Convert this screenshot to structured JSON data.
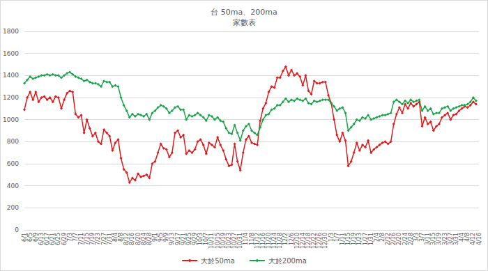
{
  "chart_data": {
    "type": "line",
    "title": "台 50ma、200ma",
    "subtitle": "家數表",
    "categories": [
      "6/1",
      null,
      "6/5",
      null,
      "6/9",
      null,
      "6/13",
      null,
      "6/17",
      null,
      "6/21",
      null,
      "6/25",
      null,
      "6/29",
      null,
      "7/3",
      null,
      "7/7",
      null,
      "7/11",
      null,
      "7/15",
      null,
      "7/19",
      null,
      "7/23",
      null,
      "7/27",
      null,
      "7/31",
      null,
      "8/4",
      null,
      "8/8",
      null,
      "8/12",
      null,
      "8/16",
      null,
      "8/20",
      null,
      "8/24",
      null,
      "8/28",
      null,
      "9/1",
      null,
      "9/5",
      null,
      "9/9",
      null,
      "9/13",
      null,
      "9/17",
      null,
      "9/21",
      null,
      "9/25",
      null,
      "9/29",
      null,
      "10/3",
      null,
      "10/7",
      null,
      "10/11",
      null,
      "10/15",
      null,
      "10/19",
      null,
      "10/23",
      null,
      "10/27",
      null,
      "10/31",
      null,
      "11/4",
      null,
      "11/8",
      null,
      "11/12",
      null,
      "11/16",
      null,
      "11/20",
      null,
      "11/24",
      null,
      "11/28",
      null,
      "12/2",
      null,
      "12/6",
      null,
      "12/10",
      null,
      "12/14",
      null,
      "12/18",
      null,
      "12/22",
      null,
      "12/26",
      null,
      "12/30",
      null,
      "1/3",
      null,
      "1/7",
      null,
      "1/11",
      null,
      "1/15",
      null,
      "1/19",
      null,
      "1/23",
      null,
      "1/27",
      null,
      "1/31",
      null,
      "2/4",
      null,
      "2/8",
      null,
      "2/12",
      null,
      "2/16",
      null,
      "2/20",
      null,
      "2/24",
      null,
      "2/28",
      null,
      "3/3",
      null,
      "3/7",
      null,
      "3/11",
      null,
      "3/15",
      null,
      "3/19",
      null,
      "3/23",
      null,
      "3/27",
      null,
      "3/31",
      null,
      "4/4",
      null,
      "4/8",
      null,
      "4/12",
      null,
      "4/16"
    ],
    "series": [
      {
        "name": "大於50ma",
        "color": "#e0191b",
        "marker": "diamond",
        "values": [
          1090,
          1200,
          1250,
          1180,
          1250,
          1160,
          1200,
          1210,
          1180,
          1200,
          1160,
          1210,
          1200,
          1100,
          1180,
          1240,
          1260,
          1250,
          1050,
          1020,
          1040,
          880,
          1000,
          920,
          850,
          880,
          800,
          780,
          910,
          880,
          850,
          720,
          790,
          820,
          650,
          550,
          520,
          430,
          470,
          450,
          510,
          480,
          490,
          500,
          470,
          600,
          620,
          700,
          780,
          740,
          730,
          660,
          700,
          880,
          900,
          840,
          860,
          690,
          720,
          700,
          730,
          800,
          820,
          770,
          690,
          790,
          770,
          750,
          840,
          770,
          720,
          640,
          580,
          590,
          780,
          620,
          540,
          700,
          820,
          850,
          790,
          780,
          770,
          990,
          1100,
          1150,
          1250,
          1300,
          1290,
          1380,
          1380,
          1440,
          1480,
          1400,
          1450,
          1400,
          1420,
          1390,
          1310,
          1400,
          1260,
          1230,
          1350,
          1330,
          1330,
          1340,
          1340,
          1220,
          1150,
          1000,
          860,
          800,
          880,
          810,
          580,
          620,
          700,
          790,
          720,
          770,
          750,
          810,
          700,
          730,
          750,
          770,
          790,
          800,
          780,
          800,
          960,
          1050,
          1110,
          1060,
          1140,
          1100,
          1150,
          1120,
          1140,
          1160,
          940,
          1020,
          960,
          980,
          900,
          940,
          960,
          1020,
          1040,
          1060,
          1000,
          1040,
          1050,
          1080,
          1100,
          1120,
          1110,
          1130,
          1160,
          1140,
          null
        ]
      },
      {
        "name": "大於200ma",
        "color": "#1aa34a",
        "marker": "diamond",
        "values": [
          1330,
          1360,
          1390,
          1370,
          1380,
          1390,
          1400,
          1400,
          1410,
          1400,
          1410,
          1400,
          1400,
          1380,
          1400,
          1420,
          1430,
          1410,
          1390,
          1380,
          1370,
          1350,
          1360,
          1340,
          1330,
          1330,
          1320,
          1300,
          1350,
          1340,
          1340,
          1300,
          1310,
          1300,
          1200,
          1130,
          1080,
          1020,
          1050,
          1030,
          1050,
          1040,
          1030,
          1050,
          1000,
          1060,
          1080,
          1110,
          1130,
          1120,
          1100,
          1060,
          1080,
          1110,
          1120,
          1090,
          1090,
          1000,
          1040,
          1030,
          1040,
          1060,
          1040,
          1020,
          990,
          1040,
          1030,
          1000,
          1020,
          990,
          980,
          920,
          880,
          870,
          950,
          880,
          810,
          900,
          940,
          960,
          900,
          880,
          860,
          930,
          1000,
          1040,
          1050,
          1090,
          1100,
          1130,
          1130,
          1160,
          1190,
          1160,
          1180,
          1170,
          1190,
          1180,
          1170,
          1190,
          1150,
          1140,
          1170,
          1160,
          1170,
          1180,
          1180,
          1180,
          1150,
          1120,
          1080,
          1100,
          1110,
          1060,
          900,
          930,
          960,
          1000,
          990,
          1020,
          1010,
          1040,
          1000,
          1010,
          1020,
          1030,
          1040,
          1040,
          1050,
          1060,
          1160,
          1180,
          1160,
          1140,
          1170,
          1150,
          1180,
          1160,
          1170,
          1180,
          1080,
          1120,
          1080,
          1100,
          1050,
          1060,
          1060,
          1100,
          1110,
          1120,
          1080,
          1100,
          1110,
          1120,
          1130,
          1130,
          1140,
          1160,
          1200,
          1170,
          null
        ]
      }
    ],
    "ylim": [
      0,
      1800
    ],
    "yticks": [
      0,
      200,
      400,
      600,
      800,
      1000,
      1200,
      1400,
      1600,
      1800
    ],
    "grid": true,
    "legend": "bottom"
  }
}
